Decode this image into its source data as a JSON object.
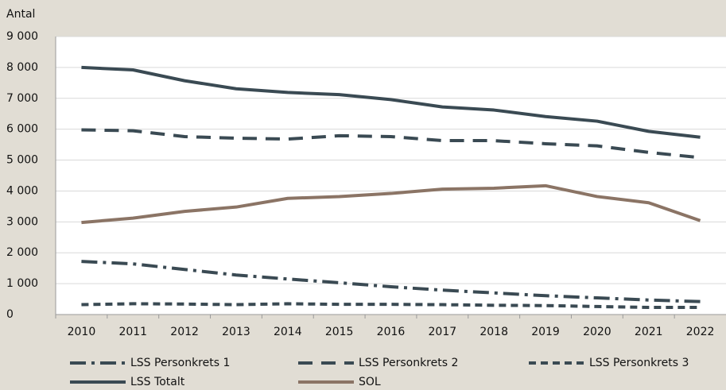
{
  "chart_data": {
    "type": "line",
    "y_label": "Antal",
    "categories": [
      "2010",
      "2011",
      "2012",
      "2013",
      "2014",
      "2015",
      "2016",
      "2017",
      "2018",
      "2019",
      "2020",
      "2021",
      "2022"
    ],
    "series": [
      {
        "name": "LSS Personkrets 1",
        "color": "#3a4a53",
        "dash": "20 7 4 7",
        "values": [
          1720,
          1640,
          1460,
          1280,
          1150,
          1030,
          900,
          790,
          700,
          610,
          540,
          470,
          420
        ]
      },
      {
        "name": "LSS Personkrets 2",
        "color": "#3a4a53",
        "dash": "18 11",
        "values": [
          5980,
          5950,
          5760,
          5710,
          5680,
          5790,
          5760,
          5630,
          5630,
          5530,
          5460,
          5250,
          5080
        ]
      },
      {
        "name": "LSS Personkrets 3",
        "color": "#3a4a53",
        "dash": "9 6",
        "values": [
          320,
          350,
          340,
          320,
          350,
          330,
          330,
          320,
          300,
          290,
          260,
          230,
          230
        ]
      },
      {
        "name": "LSS Totalt",
        "color": "#3a4a53",
        "dash": "none",
        "values": [
          8000,
          7920,
          7570,
          7310,
          7190,
          7120,
          6960,
          6720,
          6620,
          6410,
          6260,
          5930,
          5740
        ]
      },
      {
        "name": "SOL",
        "color": "#8b7465",
        "dash": "none",
        "values": [
          2980,
          3120,
          3340,
          3480,
          3760,
          3820,
          3920,
          4060,
          4090,
          4170,
          3820,
          3620,
          3040
        ]
      }
    ],
    "ylim": [
      0,
      9000
    ],
    "yticks": [
      0,
      {
        "value": 1000,
        "label": "1 000"
      },
      {
        "value": 2000,
        "label": "2 000"
      },
      {
        "value": 3000,
        "label": "3 000"
      },
      {
        "value": 4000,
        "label": "4 000"
      },
      {
        "value": 5000,
        "label": "5 000"
      },
      {
        "value": 6000,
        "label": "6 000"
      },
      {
        "value": 7000,
        "label": "7 000"
      },
      {
        "value": 8000,
        "label": "8 000"
      },
      {
        "value": 9000,
        "label": "9 000"
      }
    ],
    "grid": true
  }
}
